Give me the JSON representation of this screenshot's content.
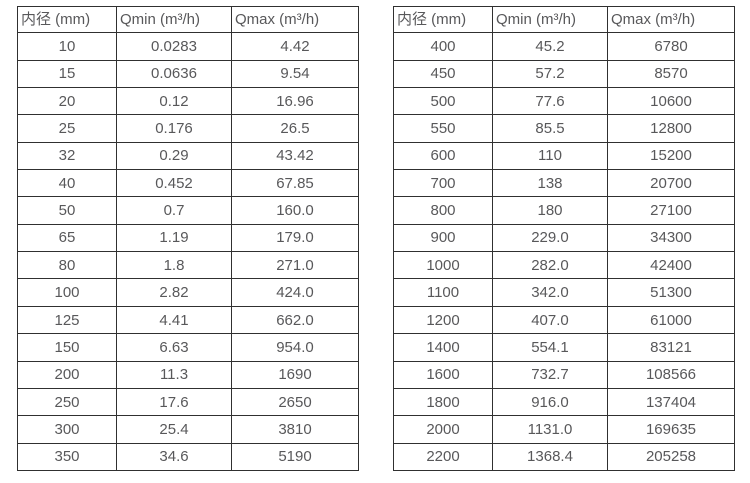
{
  "colors": {
    "border": "#303030",
    "text": "#58585a",
    "background": "#ffffff"
  },
  "left_table": {
    "headers": [
      "内径 (mm)",
      "Qmin (m³/h)",
      "Qmax (m³/h)"
    ],
    "rows": [
      [
        "10",
        "0.0283",
        "4.42"
      ],
      [
        "15",
        "0.0636",
        "9.54"
      ],
      [
        "20",
        "0.12",
        "16.96"
      ],
      [
        "25",
        "0.176",
        "26.5"
      ],
      [
        "32",
        "0.29",
        "43.42"
      ],
      [
        "40",
        "0.452",
        "67.85"
      ],
      [
        "50",
        "0.7",
        "160.0"
      ],
      [
        "65",
        "1.19",
        "179.0"
      ],
      [
        "80",
        "1.8",
        "271.0"
      ],
      [
        "100",
        "2.82",
        "424.0"
      ],
      [
        "125",
        "4.41",
        "662.0"
      ],
      [
        "150",
        "6.63",
        "954.0"
      ],
      [
        "200",
        "11.3",
        "1690"
      ],
      [
        "250",
        "17.6",
        "2650"
      ],
      [
        "300",
        "25.4",
        "3810"
      ],
      [
        "350",
        "34.6",
        "5190"
      ]
    ]
  },
  "right_table": {
    "headers": [
      "内径 (mm)",
      "Qmin (m³/h)",
      "Qmax (m³/h)"
    ],
    "rows": [
      [
        "400",
        "45.2",
        "6780"
      ],
      [
        "450",
        "57.2",
        "8570"
      ],
      [
        "500",
        "77.6",
        "10600"
      ],
      [
        "550",
        "85.5",
        "12800"
      ],
      [
        "600",
        "110",
        "15200"
      ],
      [
        "700",
        "138",
        "20700"
      ],
      [
        "800",
        "180",
        "27100"
      ],
      [
        "900",
        "229.0",
        "34300"
      ],
      [
        "1000",
        "282.0",
        "42400"
      ],
      [
        "1100",
        "342.0",
        "51300"
      ],
      [
        "1200",
        "407.0",
        "61000"
      ],
      [
        "1400",
        "554.1",
        "83121"
      ],
      [
        "1600",
        "732.7",
        "108566"
      ],
      [
        "1800",
        "916.0",
        "137404"
      ],
      [
        "2000",
        "1131.0",
        "169635"
      ],
      [
        "2200",
        "1368.4",
        "205258"
      ]
    ]
  }
}
